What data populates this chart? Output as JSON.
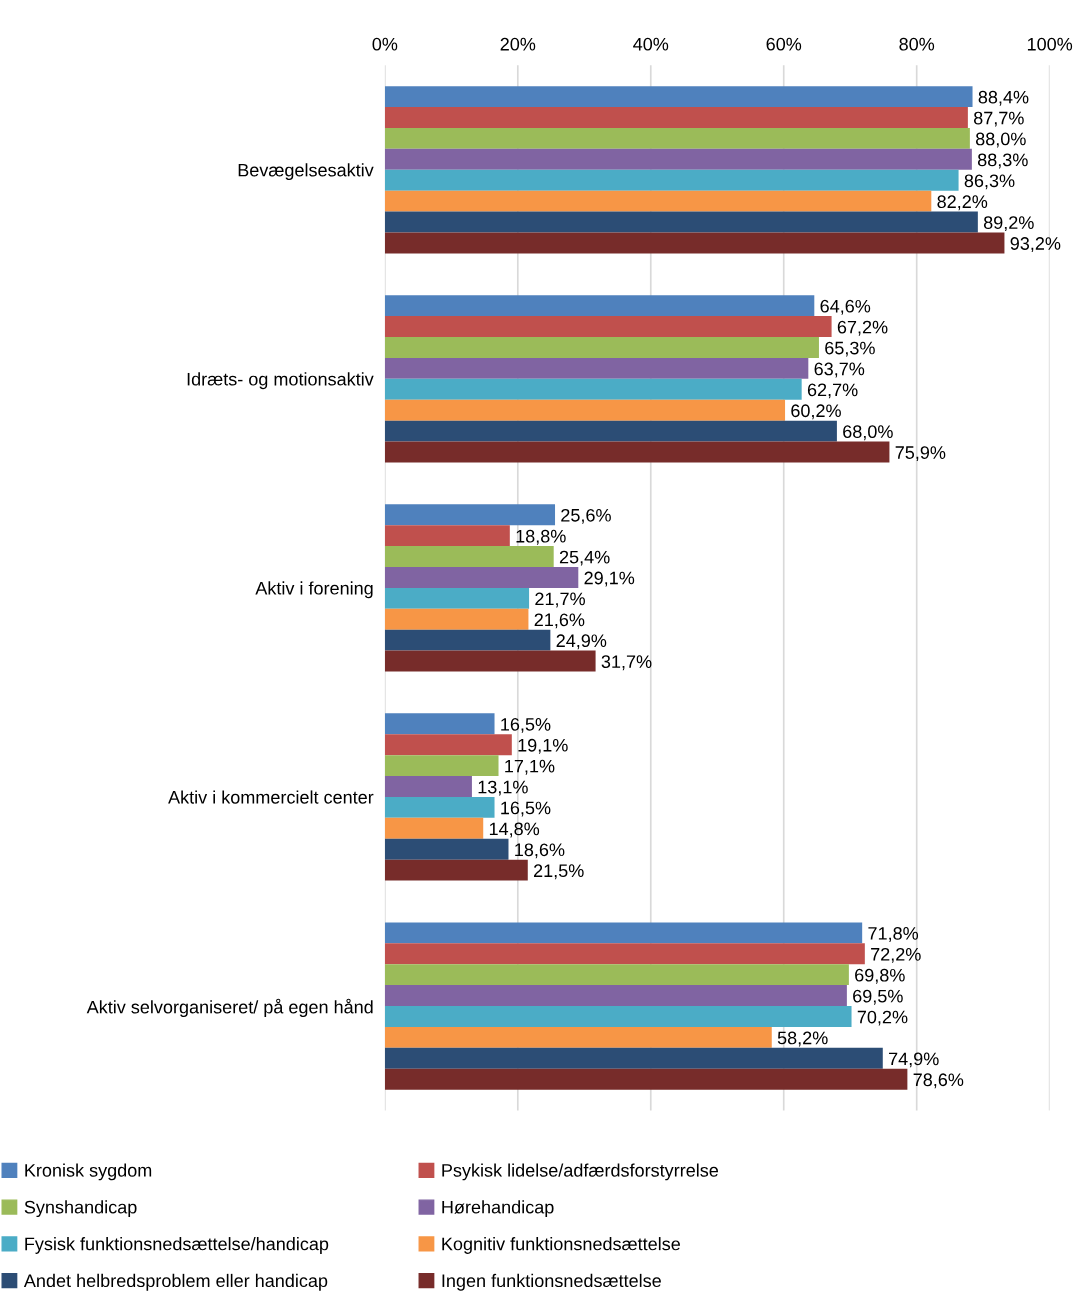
{
  "chart_data": {
    "type": "bar",
    "orientation": "horizontal",
    "categories": [
      "Bevægelsesaktiv",
      "Idræts- og motionsaktiv",
      "Aktiv i forening",
      "Aktiv i kommercielt center",
      "Aktiv selvorganiseret/ på egen hånd"
    ],
    "xlim": [
      0,
      100
    ],
    "xticks": [
      {
        "value": 0,
        "label": "0%"
      },
      {
        "value": 20,
        "label": "20%"
      },
      {
        "value": 40,
        "label": "40%"
      },
      {
        "value": 60,
        "label": "60%"
      },
      {
        "value": 80,
        "label": "80%"
      },
      {
        "value": 100,
        "label": "100%"
      }
    ],
    "grid": "x",
    "legend": "bottom",
    "series": [
      {
        "name": "Kronisk sygdom",
        "color": "#4f81bd",
        "values": [
          88.4,
          64.6,
          25.6,
          16.5,
          71.8
        ],
        "value_labels": [
          "88,4%",
          "64,6%",
          "25,6%",
          "16,5%",
          "71,8%"
        ]
      },
      {
        "name": "Psykisk lidelse/adfærdsforstyrrelse",
        "color": "#c0504d",
        "values": [
          87.7,
          67.2,
          18.8,
          19.1,
          72.2
        ],
        "value_labels": [
          "87,7%",
          "67,2%",
          "18,8%",
          "19,1%",
          "72,2%"
        ]
      },
      {
        "name": "Synshandicap",
        "color": "#9bbb59",
        "values": [
          88.0,
          65.3,
          25.4,
          17.1,
          69.8
        ],
        "value_labels": [
          "88,0%",
          "65,3%",
          "25,4%",
          "17,1%",
          "69,8%"
        ]
      },
      {
        "name": "Hørehandicap",
        "color": "#8064a2",
        "values": [
          88.3,
          63.7,
          29.1,
          13.1,
          69.5
        ],
        "value_labels": [
          "88,3%",
          "63,7%",
          "29,1%",
          "13,1%",
          "69,5%"
        ]
      },
      {
        "name": "Fysisk funktionsnedsættelse/handicap",
        "color": "#4bacc6",
        "values": [
          86.3,
          62.7,
          21.7,
          16.5,
          70.2
        ],
        "value_labels": [
          "86,3%",
          "62,7%",
          "21,7%",
          "16,5%",
          "70,2%"
        ]
      },
      {
        "name": "Kognitiv funktionsnedsættelse",
        "color": "#f79646",
        "values": [
          82.2,
          60.2,
          21.6,
          14.8,
          58.2
        ],
        "value_labels": [
          "82,2%",
          "60,2%",
          "21,6%",
          "14,8%",
          "58,2%"
        ]
      },
      {
        "name": "Andet helbredsproblem eller handicap",
        "color": "#2c4d75",
        "values": [
          89.2,
          68.0,
          24.9,
          18.6,
          74.9
        ],
        "value_labels": [
          "89,2%",
          "68,0%",
          "24,9%",
          "18,6%",
          "74,9%"
        ]
      },
      {
        "name": "Ingen funktionsnedsættelse",
        "color": "#772c2a",
        "values": [
          93.2,
          75.9,
          31.7,
          21.5,
          78.6
        ],
        "value_labels": [
          "93,2%",
          "75,9%",
          "31,7%",
          "21,5%",
          "78,6%"
        ]
      }
    ]
  }
}
